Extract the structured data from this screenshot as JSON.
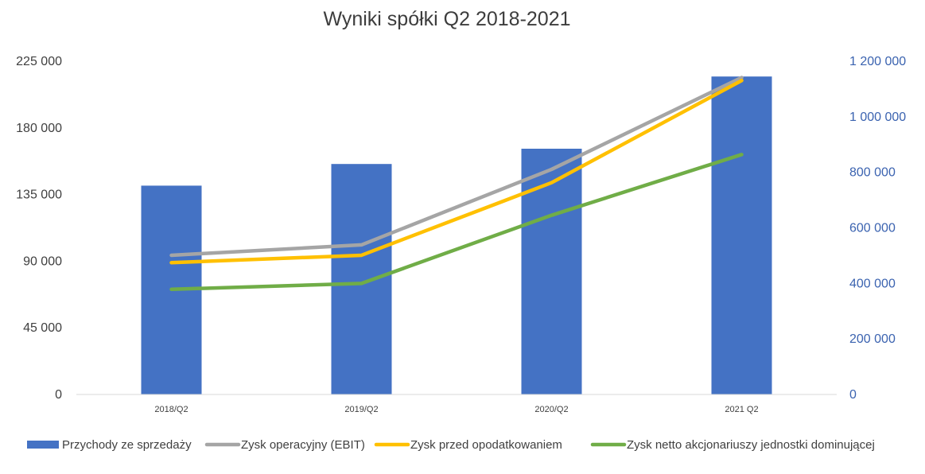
{
  "chart_data": {
    "type": "bar",
    "title": "Wyniki spółki Q2 2018-2021",
    "categories": [
      "2018/Q2",
      "2019/Q2",
      "2020/Q2",
      "2021 Q2"
    ],
    "left_axis": {
      "ticks": [
        0,
        45000,
        90000,
        135000,
        180000,
        225000
      ],
      "tick_labels": [
        "0",
        "45 000",
        "90 000",
        "135 000",
        "180 000",
        "225 000"
      ],
      "ylim": [
        0,
        225000
      ]
    },
    "right_axis": {
      "ticks": [
        0,
        200000,
        400000,
        600000,
        800000,
        1000000,
        1200000
      ],
      "tick_labels": [
        "0",
        "200 000",
        "400 000",
        "600 000",
        "800 000",
        "1 000 000",
        "1 200 000"
      ],
      "ylim": [
        0,
        1200000
      ]
    },
    "grid": false,
    "legend_position": "bottom",
    "series": [
      {
        "name": "Przychody ze sprzedaży",
        "type": "bar",
        "axis": "right",
        "color": "#4472c4",
        "values": [
          752000,
          830000,
          885000,
          1145000
        ]
      },
      {
        "name": "Zysk operacyjny (EBIT)",
        "type": "line",
        "axis": "left",
        "color": "#a5a5a5",
        "values": [
          94000,
          101000,
          152000,
          214000
        ]
      },
      {
        "name": "Zysk przed opodatkowaniem",
        "type": "line",
        "axis": "left",
        "color": "#ffc000",
        "values": [
          89000,
          94000,
          143000,
          212000
        ]
      },
      {
        "name": "Zysk netto akcjonariuszy jednostki dominującej",
        "type": "line",
        "axis": "left",
        "color": "#70ad47",
        "values": [
          71000,
          75000,
          121000,
          162000
        ]
      }
    ]
  }
}
